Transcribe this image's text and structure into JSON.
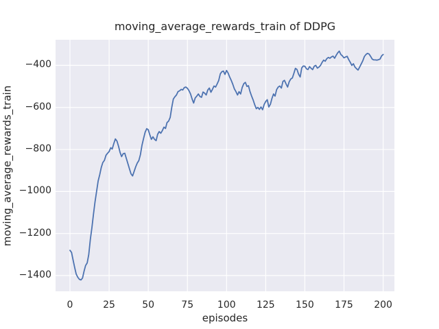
{
  "figure": {
    "background_color": "#ffffff",
    "plot_background_color": "#eaeaf2",
    "grid_color": "#ffffff",
    "text_color": "#262626"
  },
  "chart_data": {
    "type": "line",
    "title": "moving_average_rewards_train of DDPG",
    "xlabel": "episodes",
    "ylabel": "moving_average_rewards_train",
    "legend": null,
    "grid": true,
    "line_color": "#4c72b0",
    "xlim": [
      -9.2,
      207.2
    ],
    "ylim": [
      -1475,
      -278
    ],
    "xticks": [
      0,
      25,
      50,
      75,
      100,
      125,
      150,
      175,
      200
    ],
    "xtick_labels": [
      "0",
      "25",
      "50",
      "75",
      "100",
      "125",
      "150",
      "175",
      "200"
    ],
    "yticks": [
      -400,
      -600,
      -800,
      -1000,
      -1200,
      -1400
    ],
    "ytick_labels": [
      "−400",
      "−600",
      "−800",
      "−1000",
      "−1200",
      "−1400"
    ],
    "series": [
      {
        "name": "moving_average_rewards_train",
        "x_start": 0,
        "x_step": 1,
        "values": [
          -1280,
          -1290,
          -1327,
          -1362,
          -1393,
          -1408,
          -1418,
          -1421,
          -1412,
          -1380,
          -1352,
          -1340,
          -1300,
          -1228,
          -1172,
          -1110,
          -1050,
          -1000,
          -950,
          -920,
          -885,
          -862,
          -852,
          -828,
          -818,
          -810,
          -792,
          -798,
          -772,
          -750,
          -760,
          -785,
          -815,
          -834,
          -820,
          -818,
          -843,
          -868,
          -892,
          -916,
          -926,
          -904,
          -882,
          -864,
          -853,
          -825,
          -780,
          -748,
          -718,
          -701,
          -706,
          -730,
          -752,
          -740,
          -752,
          -758,
          -728,
          -715,
          -723,
          -710,
          -694,
          -700,
          -672,
          -665,
          -648,
          -600,
          -560,
          -549,
          -541,
          -525,
          -521,
          -514,
          -517,
          -506,
          -503,
          -509,
          -520,
          -536,
          -560,
          -579,
          -555,
          -546,
          -536,
          -548,
          -552,
          -527,
          -532,
          -541,
          -517,
          -508,
          -528,
          -514,
          -498,
          -503,
          -488,
          -471,
          -440,
          -430,
          -427,
          -443,
          -424,
          -437,
          -455,
          -471,
          -490,
          -512,
          -525,
          -541,
          -525,
          -536,
          -505,
          -487,
          -481,
          -500,
          -497,
          -525,
          -546,
          -565,
          -588,
          -606,
          -600,
          -609,
          -598,
          -611,
          -586,
          -572,
          -563,
          -598,
          -585,
          -557,
          -536,
          -546,
          -515,
          -503,
          -498,
          -508,
          -476,
          -471,
          -488,
          -503,
          -478,
          -465,
          -460,
          -438,
          -414,
          -420,
          -442,
          -455,
          -412,
          -403,
          -404,
          -416,
          -420,
          -406,
          -414,
          -420,
          -404,
          -400,
          -413,
          -408,
          -400,
          -386,
          -375,
          -380,
          -368,
          -362,
          -366,
          -360,
          -356,
          -366,
          -352,
          -340,
          -332,
          -348,
          -355,
          -364,
          -360,
          -357,
          -372,
          -385,
          -400,
          -392,
          -408,
          -416,
          -422,
          -408,
          -393,
          -378,
          -358,
          -348,
          -343,
          -346,
          -357,
          -370,
          -374,
          -374,
          -375,
          -373,
          -370,
          -355,
          -348
        ]
      }
    ]
  }
}
